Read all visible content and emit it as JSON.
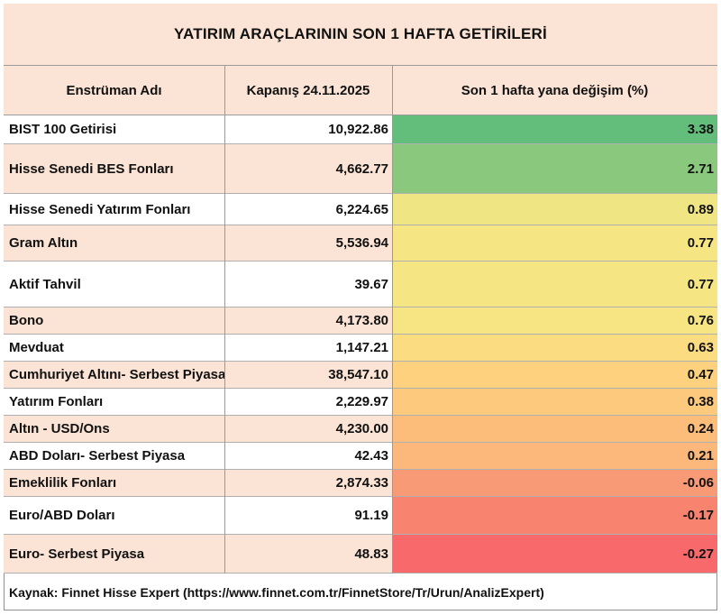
{
  "title": "YATIRIM ARAÇLARININ SON 1 HAFTA GETİRİLERİ",
  "columns": {
    "name": "Enstrüman Adı",
    "close": "Kapanış 24.11.2025",
    "change": "Son 1 hafta yana değişim (%)"
  },
  "rows": [
    {
      "name": "BIST 100 Getirisi",
      "close": "10,922.86",
      "change": "3.38",
      "change_color": "#63be7b"
    },
    {
      "name": "Hisse Senedi BES Fonları",
      "close": "4,662.77",
      "change": "2.71",
      "change_color": "#8ac97d"
    },
    {
      "name": "Hisse Senedi Yatırım Fonları",
      "close": "6,224.65",
      "change": "0.89",
      "change_color": "#efe583"
    },
    {
      "name": "Gram Altın",
      "close": "5,536.94",
      "change": "0.77",
      "change_color": "#f6e683"
    },
    {
      "name": "Aktif Tahvil",
      "close": "39.67",
      "change": "0.77",
      "change_color": "#f6e683"
    },
    {
      "name": "Bono",
      "close": "4,173.80",
      "change": "0.76",
      "change_color": "#f7e483"
    },
    {
      "name": "Mevduat",
      "close": "1,147.21",
      "change": "0.63",
      "change_color": "#fbdc80"
    },
    {
      "name": "Cumhuriyet Altını- Serbest Piyasa",
      "close": "38,547.10",
      "change": "0.47",
      "change_color": "#fdd17e"
    },
    {
      "name": "Yatırım Fonları",
      "close": "2,229.97",
      "change": "0.38",
      "change_color": "#fdc97d"
    },
    {
      "name": "Altın - USD/Ons",
      "close": "4,230.00",
      "change": "0.24",
      "change_color": "#fcbd7b"
    },
    {
      "name": "ABD Doları- Serbest Piyasa",
      "close": "42.43",
      "change": "0.21",
      "change_color": "#fcb87a"
    },
    {
      "name": "Emeklilik Fonları",
      "close": "2,874.33",
      "change": "-0.06",
      "change_color": "#f99a76"
    },
    {
      "name": "Euro/ABD Doları",
      "close": "91.19",
      "change": "-0.17",
      "change_color": "#f8836f"
    },
    {
      "name": "Euro- Serbest Piyasa",
      "close": "48.83",
      "change": "-0.27",
      "change_color": "#f8696b"
    }
  ],
  "footer": "Kaynak: Finnet Hisse Expert (https://www.finnet.com.tr/FinnetStore/Tr/Urun/AnalizExpert)"
}
